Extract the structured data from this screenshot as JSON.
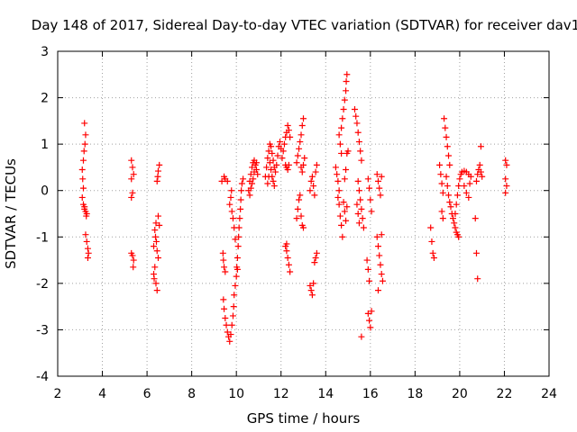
{
  "chart_data": {
    "type": "scatter",
    "title": "Day 148 of 2017, Sidereal Day-to-day VTEC variation (SDTVAR) for receiver dav1",
    "xlabel": "GPS time / hours",
    "ylabel": "SDTVAR / TECUs",
    "xlim": [
      2,
      24
    ],
    "ylim": [
      -4,
      3
    ],
    "xticks": [
      2,
      4,
      6,
      8,
      10,
      12,
      14,
      16,
      18,
      20,
      22,
      24
    ],
    "yticks": [
      -4,
      -3,
      -2,
      -1,
      0,
      1,
      2,
      3
    ],
    "grid": true,
    "marker": "+",
    "color": "#ff0000",
    "points": [
      [
        3.2,
        1.45
      ],
      [
        3.25,
        1.2
      ],
      [
        3.22,
        1.0
      ],
      [
        3.18,
        0.85
      ],
      [
        3.15,
        0.65
      ],
      [
        3.1,
        0.45
      ],
      [
        3.12,
        0.25
      ],
      [
        3.15,
        0.05
      ],
      [
        3.1,
        -0.15
      ],
      [
        3.15,
        -0.3
      ],
      [
        3.2,
        -0.4
      ],
      [
        3.25,
        -0.45
      ],
      [
        3.3,
        -0.5
      ],
      [
        3.2,
        -0.35
      ],
      [
        3.28,
        -0.55
      ],
      [
        3.25,
        -0.95
      ],
      [
        3.3,
        -1.1
      ],
      [
        3.35,
        -1.25
      ],
      [
        3.38,
        -1.35
      ],
      [
        3.35,
        -1.45
      ],
      [
        5.3,
        0.65
      ],
      [
        5.35,
        0.5
      ],
      [
        5.4,
        0.35
      ],
      [
        5.3,
        0.25
      ],
      [
        5.35,
        -0.05
      ],
      [
        5.3,
        -0.15
      ],
      [
        5.3,
        -1.35
      ],
      [
        5.35,
        -1.4
      ],
      [
        5.4,
        -1.5
      ],
      [
        5.38,
        -1.65
      ],
      [
        6.55,
        0.55
      ],
      [
        6.5,
        0.42
      ],
      [
        6.48,
        0.3
      ],
      [
        6.45,
        0.2
      ],
      [
        6.4,
        -0.7
      ],
      [
        6.35,
        -0.85
      ],
      [
        6.38,
        -1.0
      ],
      [
        6.42,
        -1.1
      ],
      [
        6.45,
        -1.3
      ],
      [
        6.5,
        -1.45
      ],
      [
        6.35,
        -1.65
      ],
      [
        6.3,
        -1.8
      ],
      [
        6.32,
        -1.9
      ],
      [
        6.4,
        -2.0
      ],
      [
        6.45,
        -2.15
      ],
      [
        6.5,
        -0.55
      ],
      [
        6.55,
        -0.75
      ],
      [
        6.3,
        -1.2
      ],
      [
        9.35,
        0.2
      ],
      [
        9.5,
        0.25
      ],
      [
        9.6,
        0.2
      ],
      [
        9.45,
        0.3
      ],
      [
        9.4,
        -1.35
      ],
      [
        9.42,
        -1.5
      ],
      [
        9.45,
        -1.65
      ],
      [
        9.5,
        -1.75
      ],
      [
        9.42,
        -2.35
      ],
      [
        9.45,
        -2.55
      ],
      [
        9.5,
        -2.75
      ],
      [
        9.55,
        -2.9
      ],
      [
        9.6,
        -3.05
      ],
      [
        9.65,
        -3.15
      ],
      [
        9.7,
        -3.25
      ],
      [
        9.75,
        -3.1
      ],
      [
        9.8,
        -2.9
      ],
      [
        9.85,
        -2.7
      ],
      [
        9.88,
        -2.5
      ],
      [
        9.9,
        -2.25
      ],
      [
        9.95,
        -2.05
      ],
      [
        10.0,
        -1.85
      ],
      [
        10.02,
        -1.65
      ],
      [
        10.05,
        -1.45
      ],
      [
        10.08,
        -1.2
      ],
      [
        10.1,
        -1.0
      ],
      [
        10.12,
        -0.8
      ],
      [
        10.15,
        -0.6
      ],
      [
        10.18,
        -0.4
      ],
      [
        10.2,
        -0.2
      ],
      [
        10.22,
        0.0
      ],
      [
        10.25,
        0.15
      ],
      [
        10.3,
        0.25
      ],
      [
        9.8,
        -0.45
      ],
      [
        9.85,
        -0.6
      ],
      [
        9.9,
        -0.8
      ],
      [
        9.95,
        -1.05
      ],
      [
        10.05,
        -1.7
      ],
      [
        9.7,
        -0.3
      ],
      [
        9.75,
        -0.15
      ],
      [
        9.78,
        0.0
      ],
      [
        10.6,
        0.2
      ],
      [
        10.65,
        0.35
      ],
      [
        10.7,
        0.5
      ],
      [
        10.75,
        0.6
      ],
      [
        10.8,
        0.65
      ],
      [
        10.85,
        0.55
      ],
      [
        10.9,
        0.45
      ],
      [
        10.95,
        0.35
      ],
      [
        10.7,
        0.15
      ],
      [
        10.65,
        0.05
      ],
      [
        10.6,
        -0.1
      ],
      [
        10.55,
        0.0
      ],
      [
        10.75,
        0.25
      ],
      [
        10.8,
        0.4
      ],
      [
        10.9,
        0.6
      ],
      [
        11.3,
        0.3
      ],
      [
        11.35,
        0.5
      ],
      [
        11.4,
        0.7
      ],
      [
        11.45,
        0.85
      ],
      [
        11.5,
        1.0
      ],
      [
        11.55,
        0.95
      ],
      [
        11.6,
        0.8
      ],
      [
        11.65,
        0.65
      ],
      [
        11.7,
        0.5
      ],
      [
        11.75,
        0.4
      ],
      [
        11.8,
        0.55
      ],
      [
        11.85,
        0.75
      ],
      [
        11.9,
        0.95
      ],
      [
        11.95,
        1.05
      ],
      [
        12.0,
        0.9
      ],
      [
        11.5,
        0.6
      ],
      [
        11.55,
        0.45
      ],
      [
        11.6,
        0.3
      ],
      [
        11.65,
        0.2
      ],
      [
        11.7,
        0.1
      ],
      [
        11.4,
        0.15
      ],
      [
        11.45,
        0.3
      ],
      [
        12.05,
        0.7
      ],
      [
        12.1,
        0.85
      ],
      [
        12.15,
        1.0
      ],
      [
        12.2,
        1.15
      ],
      [
        12.25,
        1.25
      ],
      [
        12.3,
        1.4
      ],
      [
        12.35,
        1.3
      ],
      [
        12.4,
        1.15
      ],
      [
        12.2,
        0.55
      ],
      [
        12.25,
        0.5
      ],
      [
        12.3,
        0.45
      ],
      [
        12.35,
        0.55
      ],
      [
        12.2,
        -1.2
      ],
      [
        12.25,
        -1.3
      ],
      [
        12.3,
        -1.45
      ],
      [
        12.35,
        -1.6
      ],
      [
        12.4,
        -1.75
      ],
      [
        12.25,
        -1.15
      ],
      [
        12.7,
        0.6
      ],
      [
        12.75,
        0.75
      ],
      [
        12.8,
        0.9
      ],
      [
        12.85,
        1.05
      ],
      [
        12.9,
        1.2
      ],
      [
        12.95,
        1.4
      ],
      [
        13.0,
        1.55
      ],
      [
        12.9,
        0.5
      ],
      [
        12.95,
        0.4
      ],
      [
        13.0,
        0.55
      ],
      [
        13.05,
        0.7
      ],
      [
        12.7,
        -0.6
      ],
      [
        12.75,
        -0.4
      ],
      [
        12.8,
        -0.2
      ],
      [
        12.85,
        -0.1
      ],
      [
        12.9,
        -0.55
      ],
      [
        12.95,
        -0.75
      ],
      [
        13.0,
        -0.8
      ],
      [
        13.3,
        0.0
      ],
      [
        13.35,
        0.2
      ],
      [
        13.4,
        0.3
      ],
      [
        13.45,
        0.1
      ],
      [
        13.5,
        -0.1
      ],
      [
        13.55,
        0.4
      ],
      [
        13.6,
        0.55
      ],
      [
        13.3,
        -2.05
      ],
      [
        13.35,
        -2.15
      ],
      [
        13.4,
        -2.25
      ],
      [
        13.45,
        -2.0
      ],
      [
        13.5,
        -1.55
      ],
      [
        13.55,
        -1.45
      ],
      [
        13.6,
        -1.35
      ],
      [
        14.45,
        0.5
      ],
      [
        14.5,
        0.35
      ],
      [
        14.55,
        0.2
      ],
      [
        14.6,
        0.0
      ],
      [
        14.55,
        -0.15
      ],
      [
        14.6,
        -0.3
      ],
      [
        14.65,
        -0.55
      ],
      [
        14.7,
        -0.75
      ],
      [
        14.75,
        -1.0
      ],
      [
        14.7,
        1.35
      ],
      [
        14.75,
        1.55
      ],
      [
        14.8,
        1.75
      ],
      [
        14.85,
        1.95
      ],
      [
        14.9,
        2.15
      ],
      [
        14.92,
        2.35
      ],
      [
        14.95,
        2.5
      ],
      [
        14.85,
        0.25
      ],
      [
        14.9,
        0.45
      ],
      [
        14.95,
        0.8
      ],
      [
        14.8,
        -0.25
      ],
      [
        14.85,
        -0.45
      ],
      [
        14.9,
        -0.65
      ],
      [
        14.95,
        -0.35
      ],
      [
        15.0,
        0.85
      ],
      [
        14.6,
        1.2
      ],
      [
        14.65,
        1.0
      ],
      [
        14.7,
        0.8
      ],
      [
        15.3,
        1.75
      ],
      [
        15.35,
        1.6
      ],
      [
        15.4,
        1.45
      ],
      [
        15.45,
        1.25
      ],
      [
        15.5,
        1.05
      ],
      [
        15.55,
        0.85
      ],
      [
        15.6,
        0.65
      ],
      [
        15.45,
        0.2
      ],
      [
        15.5,
        0.0
      ],
      [
        15.55,
        -0.2
      ],
      [
        15.6,
        -0.4
      ],
      [
        15.65,
        -0.6
      ],
      [
        15.7,
        -0.8
      ],
      [
        15.6,
        -3.15
      ],
      [
        15.4,
        -0.3
      ],
      [
        15.45,
        -0.5
      ],
      [
        15.5,
        -0.7
      ],
      [
        15.9,
        0.25
      ],
      [
        15.95,
        0.05
      ],
      [
        16.0,
        -0.2
      ],
      [
        16.05,
        -0.45
      ],
      [
        15.85,
        -1.5
      ],
      [
        15.9,
        -1.7
      ],
      [
        15.95,
        -1.95
      ],
      [
        15.9,
        -2.65
      ],
      [
        15.95,
        -2.8
      ],
      [
        16.0,
        -2.95
      ],
      [
        16.05,
        -2.6
      ],
      [
        16.3,
        0.35
      ],
      [
        16.35,
        0.2
      ],
      [
        16.4,
        0.05
      ],
      [
        16.45,
        -0.1
      ],
      [
        16.5,
        0.3
      ],
      [
        16.3,
        -1.0
      ],
      [
        16.35,
        -1.2
      ],
      [
        16.4,
        -1.4
      ],
      [
        16.45,
        -1.6
      ],
      [
        16.5,
        -1.8
      ],
      [
        16.55,
        -1.95
      ],
      [
        16.35,
        -2.15
      ],
      [
        16.5,
        -0.95
      ],
      [
        18.7,
        -0.8
      ],
      [
        18.75,
        -1.1
      ],
      [
        18.8,
        -1.35
      ],
      [
        18.85,
        -1.45
      ],
      [
        19.1,
        0.55
      ],
      [
        19.15,
        0.35
      ],
      [
        19.2,
        0.15
      ],
      [
        19.25,
        -0.05
      ],
      [
        19.3,
        1.55
      ],
      [
        19.35,
        1.35
      ],
      [
        19.4,
        1.15
      ],
      [
        19.45,
        0.95
      ],
      [
        19.5,
        0.75
      ],
      [
        19.55,
        0.55
      ],
      [
        19.4,
        0.3
      ],
      [
        19.45,
        0.1
      ],
      [
        19.5,
        -0.1
      ],
      [
        19.55,
        -0.25
      ],
      [
        19.6,
        -0.35
      ],
      [
        19.65,
        -0.5
      ],
      [
        19.7,
        -0.6
      ],
      [
        19.75,
        -0.7
      ],
      [
        19.8,
        -0.8
      ],
      [
        19.85,
        -0.9
      ],
      [
        19.9,
        -0.95
      ],
      [
        19.95,
        -1.0
      ],
      [
        19.8,
        -0.5
      ],
      [
        19.85,
        -0.3
      ],
      [
        19.9,
        -0.1
      ],
      [
        19.95,
        0.1
      ],
      [
        20.0,
        0.25
      ],
      [
        20.05,
        0.35
      ],
      [
        20.1,
        0.4
      ],
      [
        20.2,
        0.42
      ],
      [
        20.3,
        0.4
      ],
      [
        20.4,
        0.35
      ],
      [
        20.5,
        0.3
      ],
      [
        20.2,
        0.1
      ],
      [
        20.3,
        -0.05
      ],
      [
        20.4,
        -0.15
      ],
      [
        20.45,
        0.15
      ],
      [
        19.2,
        -0.45
      ],
      [
        19.25,
        -0.6
      ],
      [
        20.7,
        -0.6
      ],
      [
        20.75,
        -1.35
      ],
      [
        20.8,
        -1.9
      ],
      [
        20.75,
        0.2
      ],
      [
        20.8,
        0.35
      ],
      [
        20.85,
        0.45
      ],
      [
        20.9,
        0.55
      ],
      [
        20.95,
        0.4
      ],
      [
        21.0,
        0.3
      ],
      [
        20.95,
        0.95
      ],
      [
        22.05,
        0.65
      ],
      [
        22.1,
        0.55
      ],
      [
        22.05,
        0.25
      ],
      [
        22.1,
        0.1
      ],
      [
        22.05,
        -0.05
      ]
    ]
  }
}
